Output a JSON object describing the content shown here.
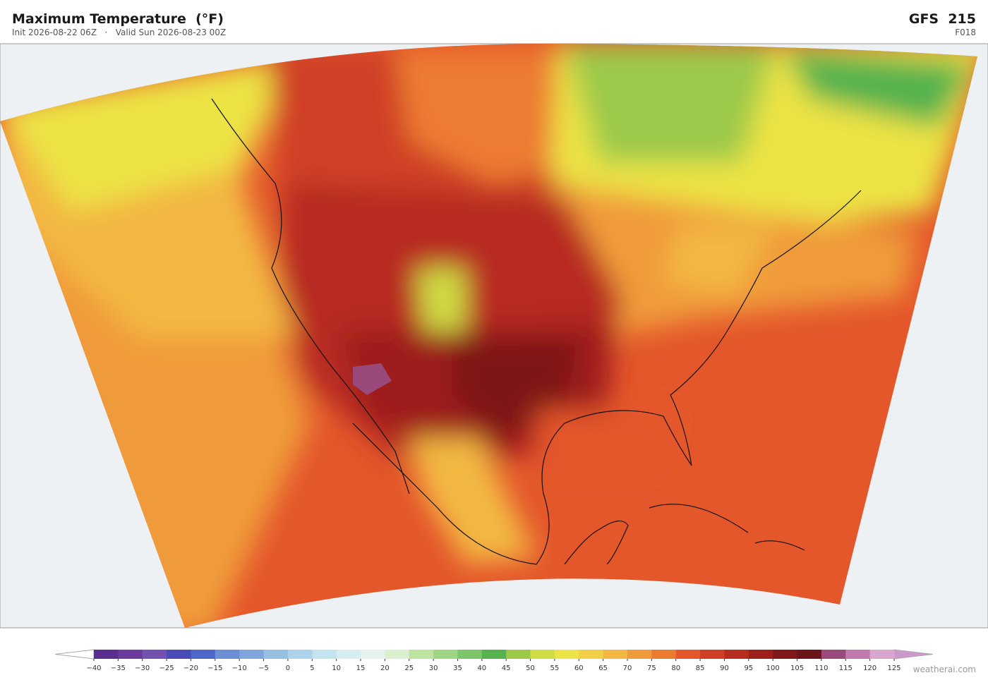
{
  "header": {
    "title": "Maximum Temperature  (°F)",
    "subtitle": "Init 2026-08-22 06Z   ·   Valid Sun 2026-08-23 00Z",
    "model": "GFS  215",
    "forecast_hour": "F018"
  },
  "colorbar": {
    "ticks": [
      {
        "value": -40,
        "label": "−40"
      },
      {
        "value": -35,
        "label": "−35"
      },
      {
        "value": -30,
        "label": "−30"
      },
      {
        "value": -25,
        "label": "−25"
      },
      {
        "value": -20,
        "label": "−20"
      },
      {
        "value": -15,
        "label": "−15"
      },
      {
        "value": -10,
        "label": "−10"
      },
      {
        "value": -5,
        "label": "−5"
      },
      0,
      5,
      10,
      15,
      20,
      25,
      30,
      35,
      40,
      45,
      50,
      55,
      60,
      65,
      70,
      75,
      80,
      85,
      90,
      95,
      100,
      105,
      110,
      115,
      120,
      125
    ],
    "colors": [
      "#5b2d8e",
      "#6a3a9c",
      "#7252b0",
      "#4a4ab8",
      "#4f66c9",
      "#6a8fd4",
      "#7fa6dc",
      "#95c0e2",
      "#acd3eb",
      "#c3e3ef",
      "#d6edf2",
      "#e6f4ee",
      "#d9efcd",
      "#bde3a0",
      "#9ed685",
      "#7cc56a",
      "#55b24e",
      "#9cc94a",
      "#cfdc45",
      "#ece345",
      "#f3cf47",
      "#f3b742",
      "#f09b3b",
      "#ec7b32",
      "#e4572b",
      "#d03f25",
      "#b82c20",
      "#9d1f1b",
      "#7f1919",
      "#6b1417",
      "#9a4a7a",
      "#c07aae",
      "#d9a6cf"
    ],
    "under_color": "#ffffff",
    "over_color": "#cc99cc"
  },
  "watermark": "weatherai.com"
}
